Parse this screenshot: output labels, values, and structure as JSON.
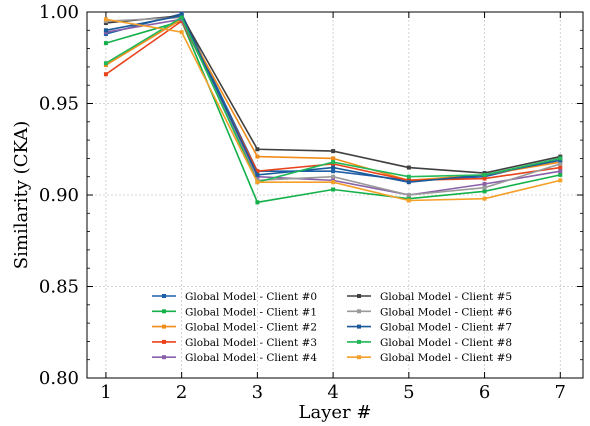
{
  "chart_data": {
    "type": "line",
    "xlabel": "Layer #",
    "ylabel": "Similarity (CKA)",
    "x": [
      1,
      2,
      3,
      4,
      5,
      6,
      7
    ],
    "xlim": [
      0.75,
      7.3
    ],
    "ylim": [
      0.8,
      1.0
    ],
    "yticks": [
      "0.80",
      "0.85",
      "0.90",
      "0.95",
      "1.00"
    ],
    "xticks": [
      "1",
      "2",
      "3",
      "4",
      "5",
      "6",
      "7"
    ],
    "grid": true,
    "legend": {
      "placement": "lower-center",
      "columns": 2
    },
    "series": [
      {
        "name": "Global Model - Client #0",
        "color": "#1f5fa8",
        "values": [
          0.988,
          0.999,
          0.913,
          0.913,
          0.908,
          0.91,
          0.92
        ]
      },
      {
        "name": "Global Model - Client #1",
        "color": "#14b04a",
        "values": [
          0.983,
          0.995,
          0.896,
          0.903,
          0.898,
          0.902,
          0.911
        ]
      },
      {
        "name": "Global Model - Client #2",
        "color": "#f08c1a",
        "values": [
          0.971,
          0.996,
          0.921,
          0.92,
          0.908,
          0.911,
          0.918
        ]
      },
      {
        "name": "Global Model - Client #3",
        "color": "#e8431a",
        "values": [
          0.966,
          0.995,
          0.913,
          0.917,
          0.908,
          0.909,
          0.915
        ]
      },
      {
        "name": "Global Model - Client #4",
        "color": "#8a60a8",
        "values": [
          0.989,
          0.996,
          0.91,
          0.908,
          0.9,
          0.906,
          0.913
        ]
      },
      {
        "name": "Global Model - Client #5",
        "color": "#404040",
        "values": [
          0.994,
          0.998,
          0.925,
          0.924,
          0.915,
          0.912,
          0.921
        ]
      },
      {
        "name": "Global Model - Client #6",
        "color": "#9a9a9a",
        "values": [
          0.995,
          0.997,
          0.908,
          0.91,
          0.9,
          0.904,
          0.917
        ]
      },
      {
        "name": "Global Model - Client #7",
        "color": "#1a5a9a",
        "values": [
          0.99,
          0.998,
          0.911,
          0.915,
          0.907,
          0.911,
          0.919
        ]
      },
      {
        "name": "Global Model - Client #8",
        "color": "#20b858",
        "values": [
          0.972,
          0.997,
          0.907,
          0.918,
          0.91,
          0.911,
          0.92
        ]
      },
      {
        "name": "Global Model - Client #9",
        "color": "#f5a02a",
        "values": [
          0.996,
          0.989,
          0.907,
          0.907,
          0.897,
          0.898,
          0.908
        ]
      }
    ]
  }
}
